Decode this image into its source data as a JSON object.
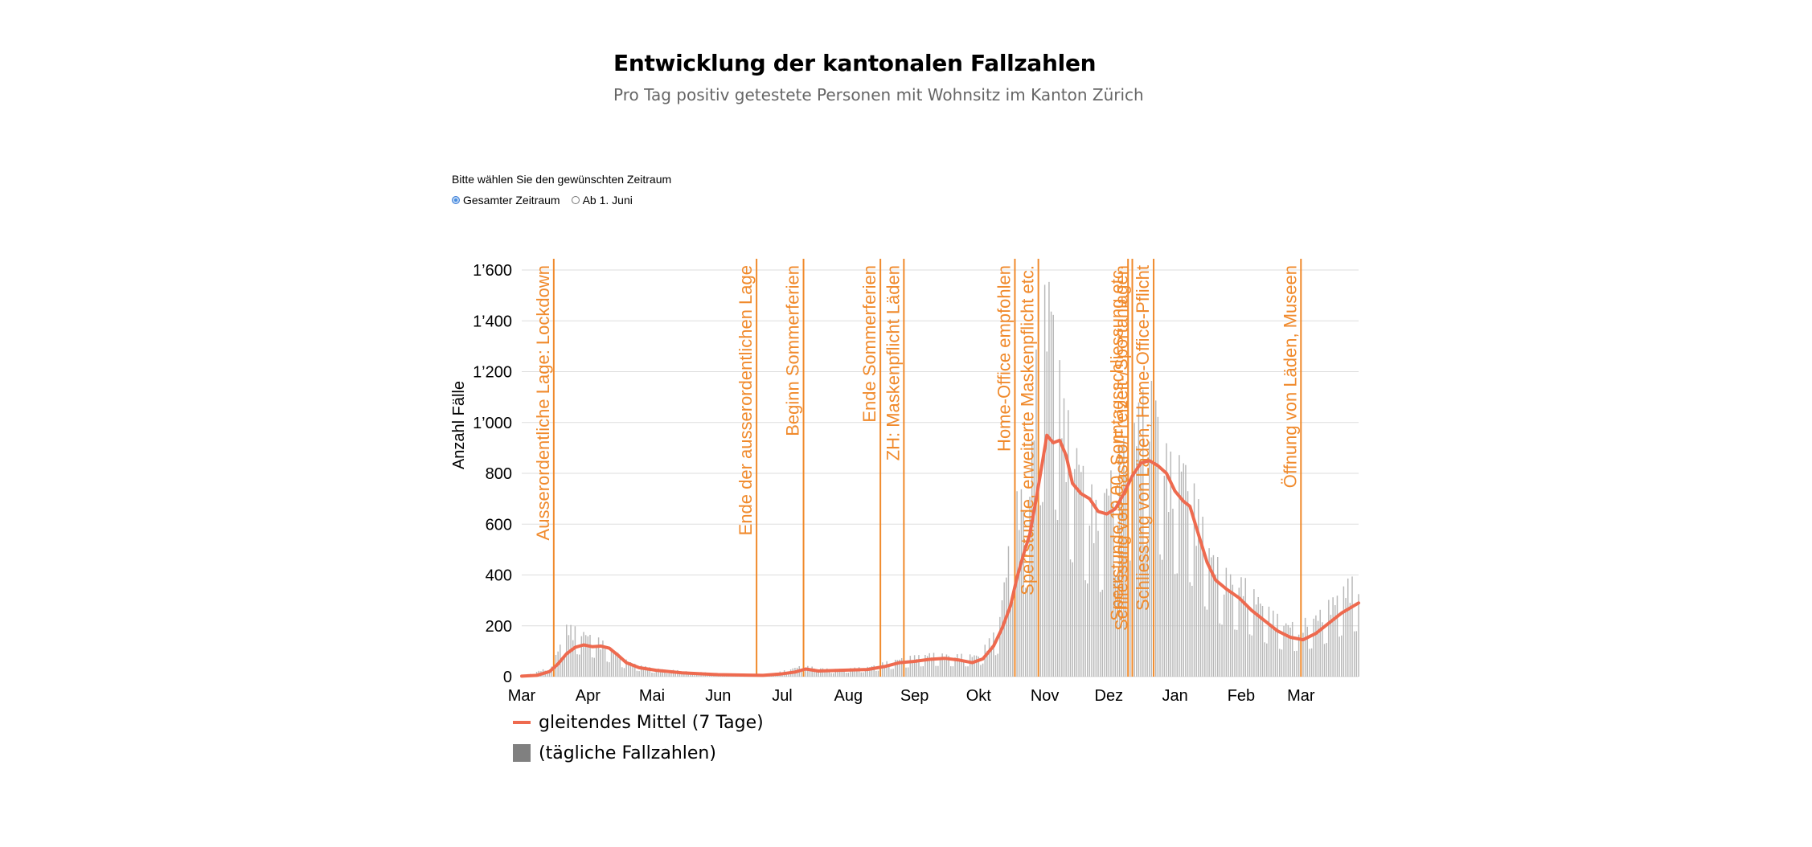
{
  "header": {
    "title": "Entwicklung der kantonalen Fallzahlen",
    "subtitle": "Pro Tag positiv getestete Personen mit Wohnsitz im Kanton Zürich"
  },
  "selector": {
    "prompt": "Bitte wählen Sie den gewünschten Zeitraum",
    "options": [
      {
        "label": "Gesamter Zeitraum",
        "checked": true
      },
      {
        "label": "Ab 1. Juni",
        "checked": false
      }
    ]
  },
  "legend": {
    "line_label": "gleitendes Mittel (7 Tage)",
    "bar_label": "(tägliche Fallzahlen)"
  },
  "colors": {
    "line": "#ee6a4f",
    "annotation": "#f08a2c",
    "bar": "#b8b8b8",
    "grid": "#dddddd"
  },
  "chart_data": {
    "type": "bar",
    "ylabel": "Anzahl Fälle",
    "ylim": [
      0,
      1600
    ],
    "yticks": [
      "0",
      "200",
      "400",
      "600",
      "800",
      "1’000",
      "1’200",
      "1’400",
      "1’600"
    ],
    "x_range": [
      "2020-03-01",
      "2021-03-28"
    ],
    "xticks": [
      {
        "date": "2020-03-01",
        "label": "Mar"
      },
      {
        "date": "2020-04-01",
        "label": "Apr"
      },
      {
        "date": "2020-05-01",
        "label": "Mai"
      },
      {
        "date": "2020-06-01",
        "label": "Jun"
      },
      {
        "date": "2020-07-01",
        "label": "Jul"
      },
      {
        "date": "2020-08-01",
        "label": "Aug"
      },
      {
        "date": "2020-09-01",
        "label": "Sep"
      },
      {
        "date": "2020-10-01",
        "label": "Okt"
      },
      {
        "date": "2020-11-01",
        "label": "Nov"
      },
      {
        "date": "2020-12-01",
        "label": "Dez"
      },
      {
        "date": "2021-01-01",
        "label": "Jan"
      },
      {
        "date": "2021-02-01",
        "label": "Feb"
      },
      {
        "date": "2021-03-01",
        "label": "Mar"
      }
    ],
    "grid": true,
    "legend_position": "bottom-left",
    "series": [
      {
        "name": "gleitendes Mittel (7 Tage)",
        "kind": "line",
        "points": [
          [
            "2020-03-01",
            2
          ],
          [
            "2020-03-08",
            5
          ],
          [
            "2020-03-14",
            20
          ],
          [
            "2020-03-18",
            50
          ],
          [
            "2020-03-22",
            90
          ],
          [
            "2020-03-26",
            115
          ],
          [
            "2020-03-30",
            125
          ],
          [
            "2020-04-03",
            118
          ],
          [
            "2020-04-07",
            120
          ],
          [
            "2020-04-11",
            112
          ],
          [
            "2020-04-15",
            85
          ],
          [
            "2020-04-19",
            55
          ],
          [
            "2020-04-25",
            35
          ],
          [
            "2020-05-03",
            25
          ],
          [
            "2020-05-15",
            15
          ],
          [
            "2020-06-01",
            8
          ],
          [
            "2020-06-15",
            6
          ],
          [
            "2020-06-22",
            5
          ],
          [
            "2020-06-30",
            10
          ],
          [
            "2020-07-07",
            18
          ],
          [
            "2020-07-12",
            30
          ],
          [
            "2020-07-18",
            22
          ],
          [
            "2020-07-28",
            25
          ],
          [
            "2020-08-10",
            28
          ],
          [
            "2020-08-18",
            40
          ],
          [
            "2020-08-25",
            55
          ],
          [
            "2020-09-01",
            60
          ],
          [
            "2020-09-08",
            68
          ],
          [
            "2020-09-15",
            72
          ],
          [
            "2020-09-22",
            65
          ],
          [
            "2020-09-28",
            55
          ],
          [
            "2020-10-03",
            70
          ],
          [
            "2020-10-08",
            120
          ],
          [
            "2020-10-12",
            190
          ],
          [
            "2020-10-16",
            280
          ],
          [
            "2020-10-19",
            390
          ],
          [
            "2020-10-22",
            480
          ],
          [
            "2020-10-25",
            560
          ],
          [
            "2020-10-28",
            700
          ],
          [
            "2020-10-31",
            850
          ],
          [
            "2020-11-02",
            950
          ],
          [
            "2020-11-05",
            920
          ],
          [
            "2020-11-08",
            930
          ],
          [
            "2020-11-11",
            870
          ],
          [
            "2020-11-14",
            760
          ],
          [
            "2020-11-18",
            720
          ],
          [
            "2020-11-22",
            700
          ],
          [
            "2020-11-26",
            650
          ],
          [
            "2020-11-30",
            640
          ],
          [
            "2020-12-04",
            660
          ],
          [
            "2020-12-08",
            720
          ],
          [
            "2020-12-12",
            790
          ],
          [
            "2020-12-16",
            840
          ],
          [
            "2020-12-20",
            850
          ],
          [
            "2020-12-24",
            830
          ],
          [
            "2020-12-28",
            800
          ],
          [
            "2021-01-01",
            730
          ],
          [
            "2021-01-05",
            690
          ],
          [
            "2021-01-08",
            670
          ],
          [
            "2021-01-12",
            560
          ],
          [
            "2021-01-16",
            450
          ],
          [
            "2021-01-20",
            380
          ],
          [
            "2021-01-25",
            345
          ],
          [
            "2021-01-31",
            310
          ],
          [
            "2021-02-06",
            260
          ],
          [
            "2021-02-12",
            220
          ],
          [
            "2021-02-18",
            180
          ],
          [
            "2021-02-24",
            155
          ],
          [
            "2021-03-02",
            145
          ],
          [
            "2021-03-08",
            170
          ],
          [
            "2021-03-14",
            210
          ],
          [
            "2021-03-20",
            250
          ],
          [
            "2021-03-28",
            290
          ]
        ]
      },
      {
        "name": "(tägliche Fallzahlen)",
        "kind": "bar",
        "daily_peaks": [
          [
            "2020-03-01",
            2
          ],
          [
            "2020-03-15",
            40
          ],
          [
            "2020-03-22",
            210
          ],
          [
            "2020-03-29",
            190
          ],
          [
            "2020-04-05",
            160
          ],
          [
            "2020-04-12",
            120
          ],
          [
            "2020-04-20",
            60
          ],
          [
            "2020-05-01",
            35
          ],
          [
            "2020-05-20",
            20
          ],
          [
            "2020-06-10",
            10
          ],
          [
            "2020-06-25",
            8
          ],
          [
            "2020-07-10",
            45
          ],
          [
            "2020-07-25",
            30
          ],
          [
            "2020-08-10",
            40
          ],
          [
            "2020-08-25",
            75
          ],
          [
            "2020-09-08",
            95
          ],
          [
            "2020-09-20",
            90
          ],
          [
            "2020-10-01",
            90
          ],
          [
            "2020-10-10",
            200
          ],
          [
            "2020-10-18",
            720
          ],
          [
            "2020-10-25",
            800
          ],
          [
            "2020-10-29",
            1470
          ],
          [
            "2020-11-04",
            1640
          ],
          [
            "2020-11-10",
            1100
          ],
          [
            "2020-11-18",
            900
          ],
          [
            "2020-11-25",
            700
          ],
          [
            "2020-12-01",
            820
          ],
          [
            "2020-12-08",
            950
          ],
          [
            "2020-12-15",
            1100
          ],
          [
            "2020-12-22",
            1210
          ],
          [
            "2020-12-29",
            880
          ],
          [
            "2021-01-05",
            920
          ],
          [
            "2021-01-12",
            700
          ],
          [
            "2021-01-19",
            500
          ],
          [
            "2021-01-26",
            420
          ],
          [
            "2021-02-02",
            400
          ],
          [
            "2021-02-09",
            330
          ],
          [
            "2021-02-16",
            260
          ],
          [
            "2021-02-23",
            220
          ],
          [
            "2021-03-02",
            230
          ],
          [
            "2021-03-09",
            260
          ],
          [
            "2021-03-16",
            320
          ],
          [
            "2021-03-23",
            390
          ],
          [
            "2021-03-28",
            400
          ]
        ]
      }
    ],
    "annotations": [
      {
        "date": "2020-03-16",
        "label": "Ausserordentliche Lage: Lockdown"
      },
      {
        "date": "2020-06-19",
        "label": "Ende der ausserordentlichen Lage"
      },
      {
        "date": "2020-07-11",
        "label": "Beginn Sommerferien"
      },
      {
        "date": "2020-08-16",
        "label": "Ende Sommerferien"
      },
      {
        "date": "2020-08-27",
        "label": "ZH: Maskenpflicht Läden"
      },
      {
        "date": "2020-10-18",
        "label": "Home-Office empfohlen"
      },
      {
        "date": "2020-10-29",
        "label": "Sperrstunde, erweiterte Maskenpflicht etc."
      },
      {
        "date": "2020-12-10",
        "label": "Sperrstunde 19.00, Sonntagsschliessung etc."
      },
      {
        "date": "2020-12-12",
        "label": "Schliessung von Gastro/Freizeit-/Sportanlagen"
      },
      {
        "date": "2020-12-22",
        "label": "Schliessung von Läden, Home-Office-Pflicht"
      },
      {
        "date": "2021-03-01",
        "label": "Öffnung von Läden, Museen"
      }
    ]
  }
}
